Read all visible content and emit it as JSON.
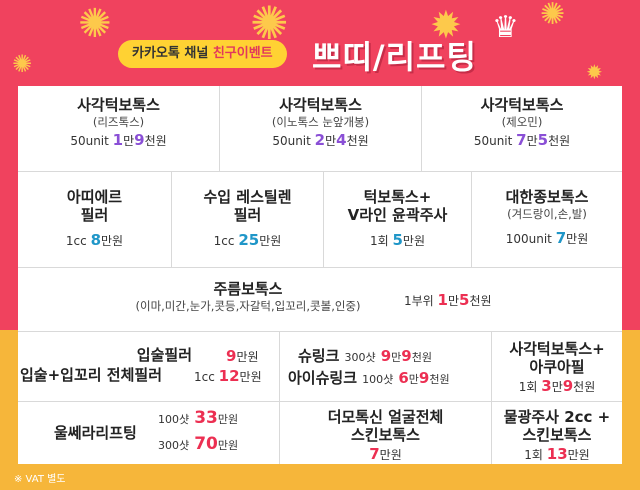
{
  "header": {
    "event_badge_strong": "카카오톡 채널",
    "event_badge_rest": "친구이벤트",
    "headline": "쁘띠/리프팅",
    "crown": "♛"
  },
  "row1": [
    {
      "title": "사각턱보톡스",
      "sub": "(리즈톡스)",
      "unit": "50unit",
      "price_a": "1",
      "price_m": "만",
      "price_b": "9",
      "price_w": "천원"
    },
    {
      "title": "사각턱보톡스",
      "sub": "(이노톡스 눈앞개봉)",
      "unit": "50unit",
      "price_a": "2",
      "price_m": "만",
      "price_b": "4",
      "price_w": "천원"
    },
    {
      "title": "사각턱보톡스",
      "sub": "(제오민)",
      "unit": "50unit",
      "price_a": "7",
      "price_m": "만",
      "price_b": "5",
      "price_w": "천원"
    }
  ],
  "row2": [
    {
      "title1": "아띠에르",
      "title2": "필러",
      "unit": "1cc",
      "price": "8",
      "won": "만원"
    },
    {
      "title1": "수입 레스틸렌",
      "title2": "필러",
      "unit": "1cc",
      "price": "25",
      "won": "만원"
    },
    {
      "title1": "턱보톡스+",
      "title2": "V라인 윤곽주사",
      "unit": "1회",
      "price": "5",
      "won": "만원"
    },
    {
      "title1": "대한종보톡스",
      "title2": "(겨드랑이,손,발)",
      "unit": "100unit",
      "price": "7",
      "won": "만원"
    }
  ],
  "row3": {
    "title": "주름보톡스",
    "sub": "(이마,미간,눈가,콧등,자갈턱,입꼬리,콧볼,인중)",
    "unit": "1부위",
    "price_a": "1",
    "price_m": "만",
    "price_b": "5",
    "price_w": "천원"
  },
  "row4": {
    "lip": {
      "line1": "입술필러",
      "line1_price": "9",
      "line1_won": "만원",
      "line2": "입술+입꼬리 전체필러",
      "line2_unit": "1cc",
      "line2_price": "12",
      "line2_won": "만원"
    },
    "shurink": {
      "line1": "슈링크",
      "line1_unit": "300샷",
      "line1_a": "9",
      "line1_m": "만",
      "line1_b": "9",
      "line1_w": "천원",
      "line2": "아이슈링크",
      "line2_unit": "100샷",
      "line2_a": "6",
      "line2_m": "만",
      "line2_b": "9",
      "line2_w": "천원"
    },
    "aqua": {
      "title1": "사각턱보톡스+",
      "title2": "아쿠아필",
      "unit": "1회",
      "price_a": "3",
      "price_m": "만",
      "price_b": "9",
      "price_w": "천원"
    }
  },
  "row5": {
    "ulthera": {
      "title": "울쎄라리프팅",
      "opt1_unit": "100샷",
      "opt1_price": "33",
      "opt1_won": "만원",
      "opt2_unit": "300샷",
      "opt2_price": "70",
      "opt2_won": "만원"
    },
    "dermo": {
      "title1": "더모톡신 얼굴전체",
      "title2": "스킨보톡스",
      "price": "7",
      "won": "만원"
    },
    "water": {
      "title1": "물광주사 2cc +",
      "title2": "스킨보톡스",
      "unit": "1회",
      "price": "13",
      "won": "만원"
    }
  },
  "footer": {
    "vat_note": "※ VAT 별도"
  },
  "colors": {
    "bg_top": "#f0425e",
    "bg_bottom": "#f6b63a",
    "purple": "#8a4fd6",
    "teal": "#1f96c8",
    "red": "#ec2f52",
    "badge": "#ffd233"
  }
}
